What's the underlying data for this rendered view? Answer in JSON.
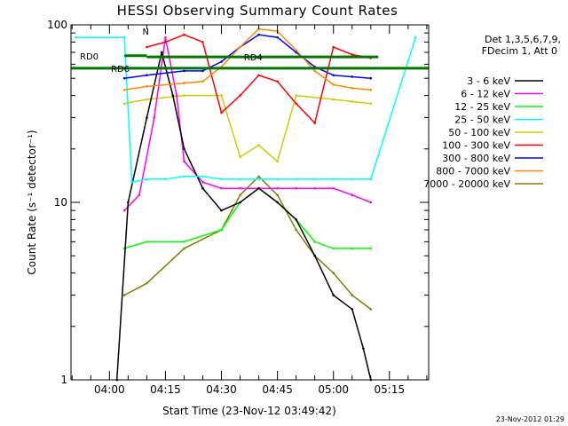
{
  "chart_data": {
    "type": "line",
    "title": "HESSI Observing Summary Count Rates",
    "xlabel": "Start Time (23-Nov-12 03:49:42)",
    "ylabel": "Count Rate (s⁻¹ detector⁻¹)",
    "x_tick_labels": [
      "04:00",
      "04:15",
      "04:30",
      "04:45",
      "05:00",
      "05:15"
    ],
    "y_tick_labels": [
      "1",
      "10",
      "100"
    ],
    "xlim": [
      "03:49:42",
      "05:25:30"
    ],
    "ylim": [
      1,
      100
    ],
    "yscale": "log",
    "legend_position": "right",
    "legend_header": [
      "Det 1,3,5,6,7,9,",
      "FDecim 1, Att 0"
    ],
    "series": [
      {
        "name": "3 - 6 keV",
        "color": "#000000",
        "x": [
          "04:02",
          "04:05",
          "04:10",
          "04:14",
          "04:17",
          "04:20",
          "04:25",
          "04:30",
          "04:35",
          "04:40",
          "04:45",
          "04:50",
          "04:55",
          "05:00",
          "05:05",
          "05:08",
          "05:10"
        ],
        "values": [
          1,
          10,
          30,
          70,
          40,
          20,
          12,
          9,
          10,
          12,
          10,
          8,
          5,
          3,
          2.5,
          1.5,
          1
        ]
      },
      {
        "name": "6 - 12 keV",
        "color": "#ff00ff",
        "x": [
          "04:04",
          "04:08",
          "04:12",
          "04:15",
          "04:18",
          "04:20",
          "04:25",
          "04:30",
          "04:35",
          "04:40",
          "04:45",
          "04:50",
          "04:55",
          "05:00",
          "05:05",
          "05:10"
        ],
        "values": [
          9,
          11,
          30,
          85,
          40,
          17,
          13,
          12,
          12,
          12,
          12,
          12,
          12,
          12,
          11,
          10
        ]
      },
      {
        "name": "12 - 25 keV",
        "color": "#00ff00",
        "x": [
          "04:04",
          "04:10",
          "04:20",
          "04:30",
          "04:35",
          "04:40",
          "04:45",
          "04:50",
          "04:55",
          "05:00",
          "05:05",
          "05:10"
        ],
        "values": [
          5.5,
          6,
          6,
          7,
          10,
          12,
          10,
          8,
          6,
          5.5,
          5.5,
          5.5
        ]
      },
      {
        "name": "25 - 50 keV",
        "color": "#00ffff",
        "x": [
          "03:51",
          "04:04",
          "04:06",
          "04:10",
          "04:15",
          "04:20",
          "04:25",
          "04:30",
          "04:35",
          "04:40",
          "04:45",
          "04:50",
          "04:55",
          "05:00",
          "05:05",
          "05:10",
          "05:22"
        ],
        "values": [
          85,
          85,
          13,
          13.5,
          13.5,
          14,
          14,
          13.5,
          13.5,
          13.5,
          13.5,
          13.5,
          13.5,
          13.5,
          13.5,
          13.5,
          85
        ]
      },
      {
        "name": "50 - 100 keV",
        "color": "#cccc00",
        "x": [
          "04:04",
          "04:10",
          "04:20",
          "04:30",
          "04:35",
          "04:40",
          "04:45",
          "04:50",
          "05:00",
          "05:05",
          "05:10"
        ],
        "values": [
          36,
          38,
          40,
          40,
          18,
          21,
          17,
          40,
          38,
          37,
          36
        ]
      },
      {
        "name": "100 - 300 keV",
        "color": "#ff0000",
        "x": [
          "04:10",
          "04:15",
          "04:20",
          "04:25",
          "04:30",
          "04:35",
          "04:40",
          "04:45",
          "04:50",
          "04:55",
          "05:00",
          "05:05",
          "05:10"
        ],
        "values": [
          75,
          80,
          88,
          80,
          32,
          40,
          52,
          48,
          36,
          28,
          75,
          68,
          65
        ]
      },
      {
        "name": "300 - 800 keV",
        "color": "#0000ff",
        "x": [
          "04:04",
          "04:10",
          "04:20",
          "04:25",
          "04:30",
          "04:35",
          "04:40",
          "04:45",
          "04:50",
          "04:55",
          "05:00",
          "05:05",
          "05:10"
        ],
        "values": [
          50,
          52,
          55,
          55,
          62,
          75,
          88,
          85,
          70,
          58,
          52,
          51,
          50
        ]
      },
      {
        "name": "800 - 7000 keV",
        "color": "#ff8800",
        "x": [
          "04:04",
          "04:10",
          "04:20",
          "04:25",
          "04:30",
          "04:35",
          "04:40",
          "04:45",
          "04:50",
          "04:55",
          "05:00",
          "05:05",
          "05:10"
        ],
        "values": [
          43,
          45,
          47,
          48,
          58,
          75,
          95,
          92,
          72,
          55,
          46,
          44,
          43
        ]
      },
      {
        "name": "7000 - 20000 keV",
        "color": "#808000",
        "x": [
          "04:04",
          "04:10",
          "04:20",
          "04:30",
          "04:35",
          "04:40",
          "04:45",
          "04:50",
          "04:55",
          "05:00",
          "05:05",
          "05:10"
        ],
        "values": [
          3,
          3.5,
          5.5,
          7,
          11,
          14,
          11,
          7,
          5,
          4,
          3,
          2.5
        ]
      }
    ],
    "annotations": [
      {
        "label": "N",
        "color": "#00ffff"
      },
      {
        "label": "RD0",
        "color": "#007700"
      },
      {
        "label": "RD4",
        "color": "#007700"
      },
      {
        "label": "RD6",
        "color": "#007700"
      }
    ]
  },
  "footer_stamp": "23-Nov-2012 01:29"
}
